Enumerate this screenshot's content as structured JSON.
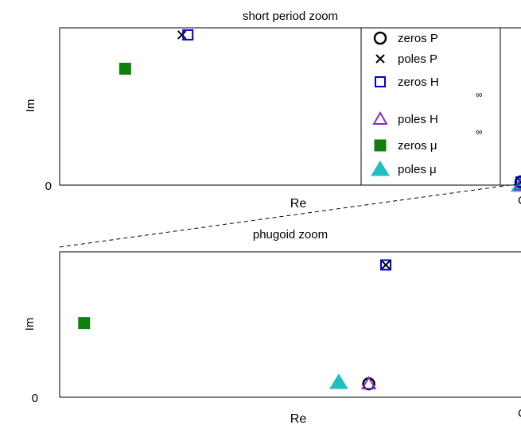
{
  "chart_data": [
    {
      "type": "scatter",
      "title": "short period zoom",
      "xlabel": "Re",
      "ylabel": "Im",
      "ytick_labels": [
        "0"
      ],
      "legend_placement": "top-right",
      "legend": [
        {
          "marker": "circle-open",
          "color": "#000000",
          "text": "zeros P"
        },
        {
          "marker": "x",
          "color": "#000000",
          "text": "poles P"
        },
        {
          "marker": "square-open",
          "color": "#0000CC",
          "text": "zeros H",
          "subscript": "∞"
        },
        {
          "marker": "triangle-open",
          "color": "#7F2FCF",
          "text": "poles H",
          "subscript": "∞"
        },
        {
          "marker": "square-filled",
          "color": "#107F10",
          "text": "zeros μ"
        },
        {
          "marker": "triangle-filled",
          "color": "#20C0C0",
          "text": "poles μ"
        }
      ],
      "xlim": [
        0,
        1
      ],
      "ylim": [
        0,
        1
      ],
      "series": [
        {
          "name": "zeros P",
          "marker": "circle-open",
          "color": "#000000",
          "points": [
            [
              1.0,
              0.02
            ]
          ]
        },
        {
          "name": "poles P",
          "marker": "x",
          "color": "#000000",
          "points": [
            [
              0.265,
              0.955
            ],
            [
              1.0,
              0.02
            ]
          ]
        },
        {
          "name": "zeros H",
          "marker": "square-open",
          "color": "#0000CC",
          "points": [
            [
              0.278,
              0.955
            ],
            [
              1.0,
              0.02
            ]
          ]
        },
        {
          "name": "poles H",
          "marker": "triangle-open",
          "color": "#7F2FCF",
          "points": [
            [
              1.0,
              0.0
            ]
          ]
        },
        {
          "name": "zeros μ",
          "marker": "square-filled",
          "color": "#107F10",
          "points": [
            [
              0.142,
              0.74
            ]
          ]
        },
        {
          "name": "poles μ",
          "marker": "triangle-filled",
          "color": "#20C0C0",
          "points": [
            [
              0.998,
              0.0
            ]
          ]
        }
      ]
    },
    {
      "type": "scatter",
      "title": "phugoid zoom",
      "xlabel": "Re",
      "ylabel": "Im",
      "ytick_labels": [
        "0"
      ],
      "xlim": [
        0,
        1
      ],
      "ylim": [
        0,
        1
      ],
      "series": [
        {
          "name": "zeros P",
          "marker": "circle-open",
          "color": "#000000",
          "points": [
            [
              0.67,
              0.092
            ]
          ]
        },
        {
          "name": "poles P",
          "marker": "x",
          "color": "#000000",
          "points": [
            [
              0.707,
              0.91
            ]
          ]
        },
        {
          "name": "zeros H",
          "marker": "square-open",
          "color": "#0000CC",
          "points": [
            [
              0.707,
              0.91
            ]
          ]
        },
        {
          "name": "poles H",
          "marker": "triangle-open",
          "color": "#7F2FCF",
          "points": [
            [
              0.67,
              0.092
            ]
          ]
        },
        {
          "name": "zeros μ",
          "marker": "square-filled",
          "color": "#107F10",
          "points": [
            [
              0.053,
              0.51
            ]
          ]
        },
        {
          "name": "poles μ",
          "marker": "triangle-filled",
          "color": "#20C0C0",
          "points": [
            [
              0.605,
              0.103
            ]
          ]
        }
      ]
    }
  ]
}
